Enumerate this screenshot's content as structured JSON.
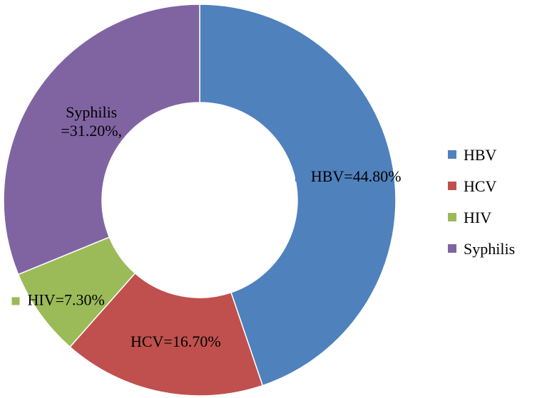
{
  "chart_data": {
    "type": "pie",
    "variant": "doughnut",
    "legend_position": "right",
    "categories": [
      "HBV",
      "HCV",
      "HIV",
      "Syphilis"
    ],
    "values": [
      44.8,
      16.7,
      7.3,
      31.2
    ],
    "colors": [
      "#4f81bd",
      "#c0504d",
      "#9bbb59",
      "#8064a2"
    ],
    "data_labels": [
      {
        "line1": "HBV=44.80%",
        "line2": "",
        "marker": true
      },
      {
        "line1": "HCV=16.70%",
        "line2": "",
        "marker": false
      },
      {
        "line1": "HIV=7.30%",
        "line2": "",
        "marker": true
      },
      {
        "line1": "Syphilis",
        "line2": "=31.20%,",
        "marker": false
      }
    ],
    "legend": [
      "HBV",
      "HCV",
      "HIV",
      "Syphilis"
    ]
  }
}
